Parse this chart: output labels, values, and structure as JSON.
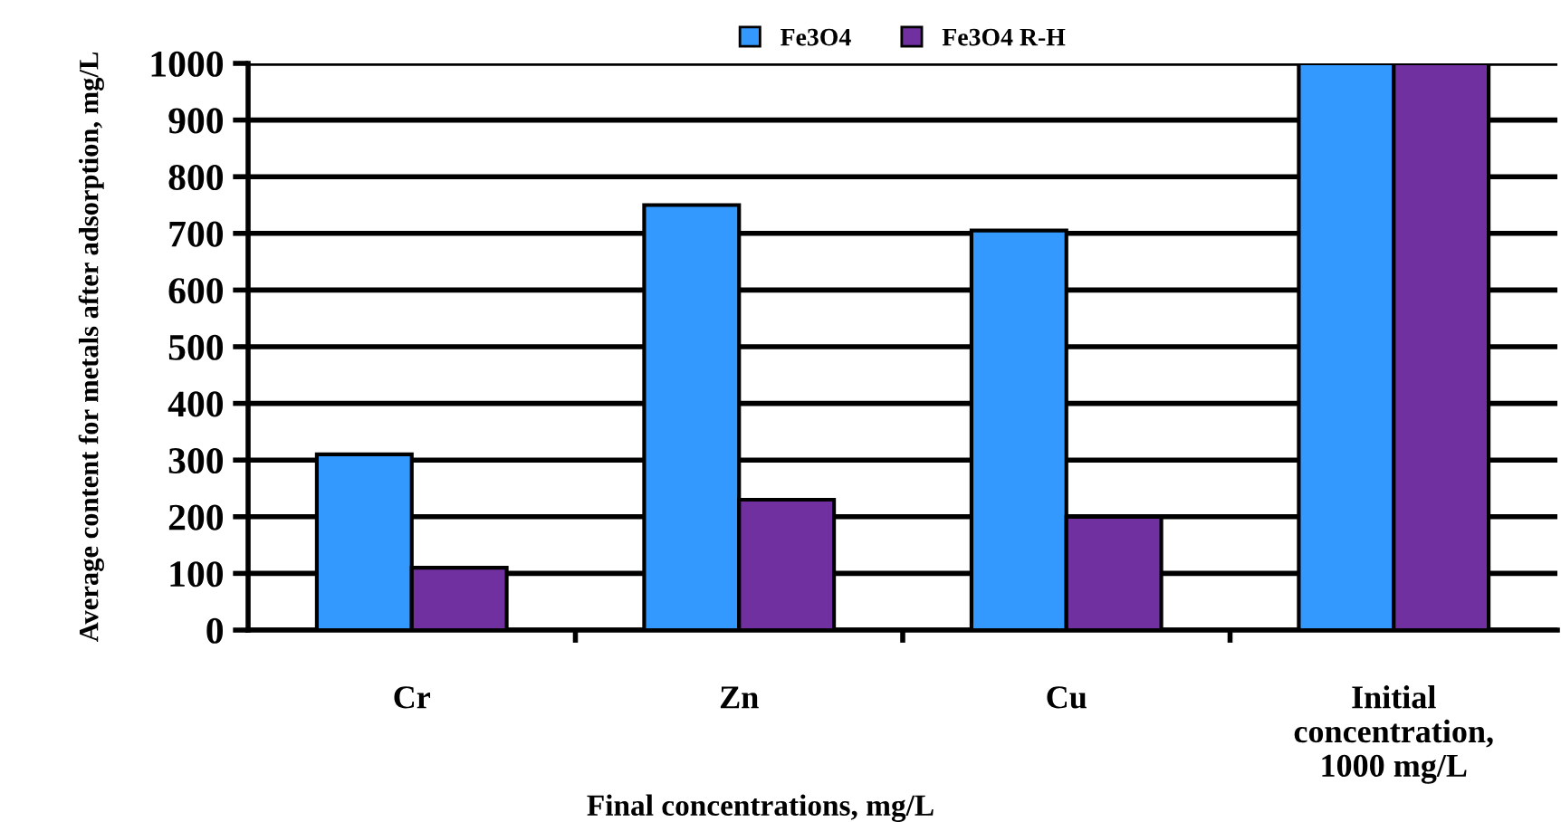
{
  "chart_data": {
    "type": "bar",
    "xlabel": "Final concentrations, mg/L",
    "ylabel": "Average content for metals after adsorption, mg/L",
    "categories": [
      "Cr",
      "Zn",
      "Cu",
      "Initial\nconcentration,\n1000 mg/L"
    ],
    "series": [
      {
        "name": "Fe3O4",
        "color": "#3399ff",
        "values": [
          310,
          750,
          705,
          1000
        ]
      },
      {
        "name": "Fe3O4 R-H",
        "color": "#7030a0",
        "values": [
          110,
          230,
          200,
          1000
        ]
      }
    ],
    "ylim": [
      0,
      1000
    ],
    "yticks": [
      0,
      100,
      200,
      300,
      400,
      500,
      600,
      700,
      800,
      900,
      1000
    ],
    "grid": "y",
    "legend": "top"
  }
}
